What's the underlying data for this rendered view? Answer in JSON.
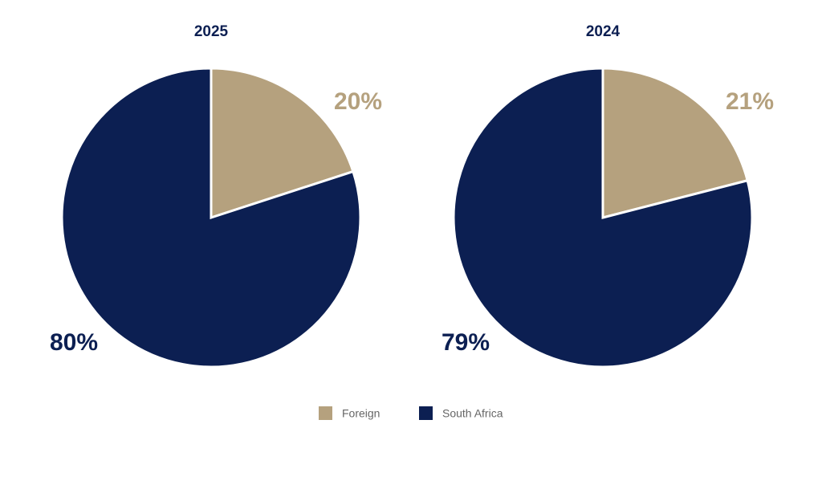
{
  "chart_data": [
    {
      "type": "pie",
      "title": "2025",
      "categories": [
        "Foreign",
        "South Africa"
      ],
      "values": [
        20,
        80
      ],
      "value_labels": [
        "20%",
        "80%"
      ],
      "colors": [
        "#b5a17e",
        "#0c1f52"
      ]
    },
    {
      "type": "pie",
      "title": "2024",
      "categories": [
        "Foreign",
        "South Africa"
      ],
      "values": [
        21,
        79
      ],
      "value_labels": [
        "21%",
        "79%"
      ],
      "colors": [
        "#b5a17e",
        "#0c1f52"
      ]
    }
  ]
}
